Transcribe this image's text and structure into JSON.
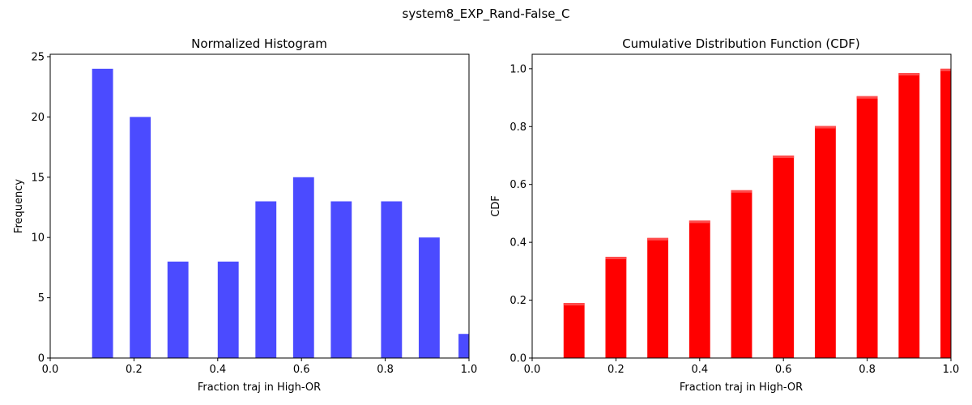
{
  "suptitle": "system8_EXP_Rand-False_C",
  "chart_data": [
    {
      "type": "bar",
      "title": "Normalized Histogram",
      "xlabel": "Fraction traj in High-OR",
      "ylabel": "Frequency",
      "xlim": [
        0.0,
        1.0
      ],
      "ylim": [
        0,
        25.2
      ],
      "xticks": [
        "0.0",
        "0.2",
        "0.4",
        "0.6",
        "0.8",
        "1.0"
      ],
      "xtick_values": [
        0.0,
        0.2,
        0.4,
        0.6,
        0.8,
        1.0
      ],
      "yticks": [
        "0",
        "5",
        "10",
        "15",
        "20",
        "25"
      ],
      "ytick_values": [
        0,
        5,
        10,
        15,
        20,
        25
      ],
      "bar_width": 0.05,
      "x": [
        0.125,
        0.215,
        0.305,
        0.425,
        0.515,
        0.605,
        0.695,
        0.815,
        0.905,
        1.0
      ],
      "values": [
        24,
        20,
        8,
        8,
        13,
        15,
        13,
        13,
        10,
        2
      ],
      "color": "#4b4bff",
      "grid": false
    },
    {
      "type": "bar",
      "title": "Cumulative Distribution Function (CDF)",
      "xlabel": "Fraction traj in High-OR",
      "ylabel": "CDF",
      "xlim": [
        0.0,
        1.0
      ],
      "ylim": [
        0,
        1.05
      ],
      "xticks": [
        "0.0",
        "0.2",
        "0.4",
        "0.6",
        "0.8",
        "1.0"
      ],
      "xtick_values": [
        0.0,
        0.2,
        0.4,
        0.6,
        0.8,
        1.0
      ],
      "yticks": [
        "0.0",
        "0.2",
        "0.4",
        "0.6",
        "0.8",
        "1.0"
      ],
      "ytick_values": [
        0.0,
        0.2,
        0.4,
        0.6,
        0.8,
        1.0
      ],
      "bar_width": 0.05,
      "x": [
        0.1,
        0.2,
        0.3,
        0.4,
        0.5,
        0.6,
        0.7,
        0.8,
        0.9,
        1.0
      ],
      "values": [
        0.19,
        0.35,
        0.415,
        0.475,
        0.58,
        0.7,
        0.802,
        0.905,
        0.985,
        1.0
      ],
      "color": "#ff0000",
      "grid": false
    }
  ]
}
